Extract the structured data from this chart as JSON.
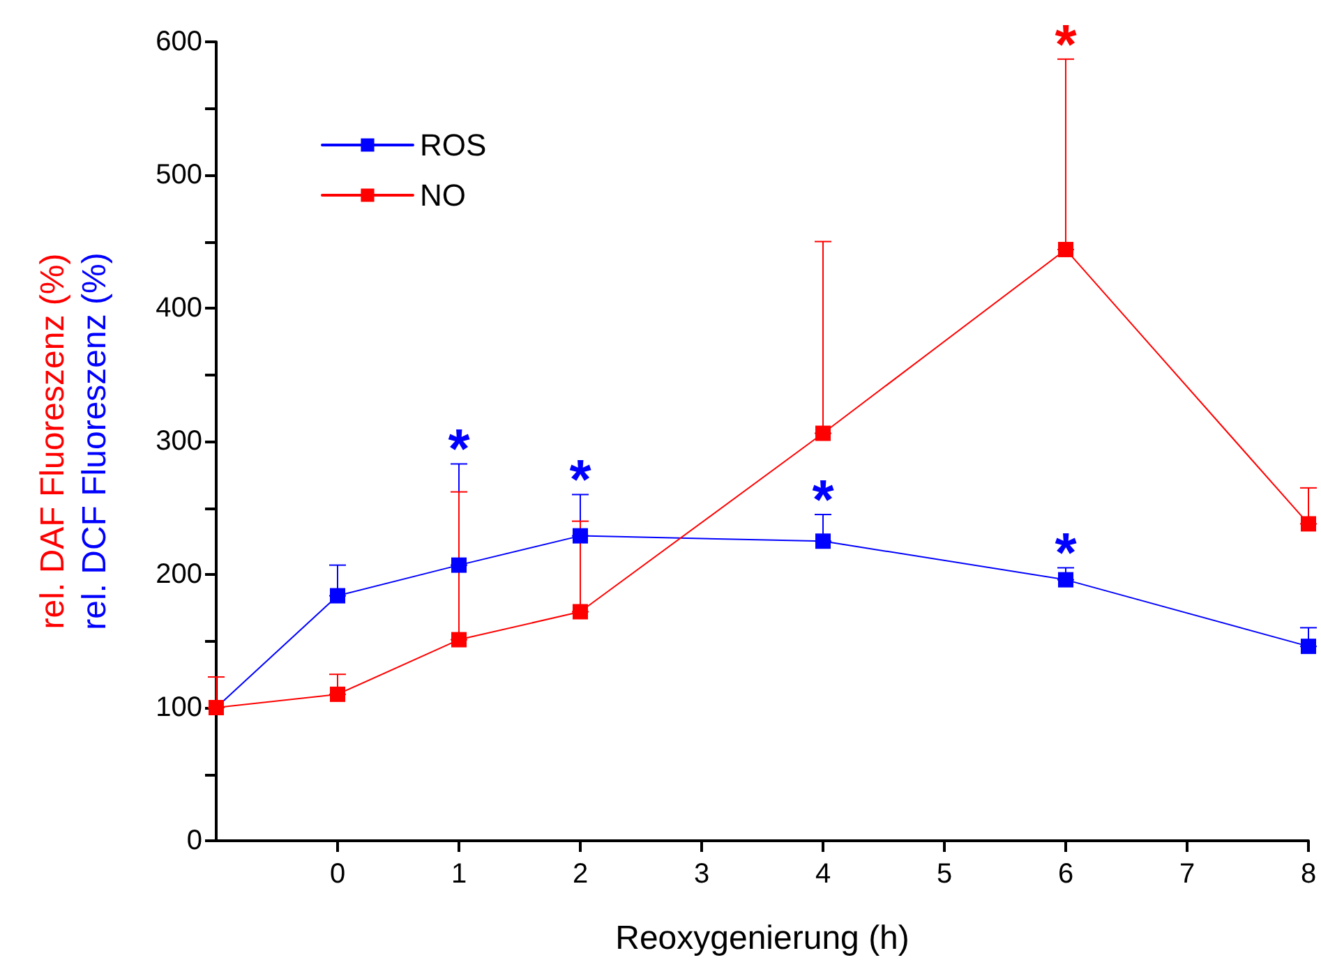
{
  "chart_data": {
    "type": "line",
    "xlabel": "Reoxygenierung (h)",
    "ylabel": "rel. DAF Fluoreszenz (%)\nrel. DCF Fluoreszenz (%)",
    "x": [
      -1,
      0,
      1,
      2,
      4,
      6,
      8
    ],
    "xlim": [
      -1,
      8
    ],
    "xticks": [
      0,
      1,
      2,
      3,
      4,
      5,
      6,
      7,
      8
    ],
    "ylim": [
      0,
      600
    ],
    "yticks": [
      0,
      {
        "value": 50,
        "label": null
      },
      100,
      {
        "value": 150,
        "label": null
      },
      200,
      {
        "value": 250,
        "label": null
      },
      300,
      {
        "value": 350,
        "label": null
      },
      400,
      {
        "value": 450,
        "label": null
      },
      500,
      {
        "value": 550,
        "label": null
      },
      600
    ],
    "series": [
      {
        "name": "ROS",
        "color": "#0000ff",
        "values": [
          100,
          184,
          207,
          229,
          225,
          196,
          146
        ],
        "errors": [
          null,
          [
            184,
            207
          ],
          [
            207,
            283
          ],
          [
            229,
            260
          ],
          [
            225,
            245
          ],
          [
            196,
            205
          ],
          [
            146,
            160
          ]
        ]
      },
      {
        "name": "NO",
        "color": "#ff0000",
        "values": [
          100,
          110,
          151,
          172,
          306,
          444,
          238
        ],
        "errors": [
          [
            100,
            123
          ],
          [
            110,
            125
          ],
          [
            151,
            262
          ],
          [
            172,
            240
          ],
          [
            306,
            450
          ],
          [
            444,
            587
          ],
          [
            238,
            265
          ]
        ]
      }
    ],
    "annotations": [
      {
        "text": "*",
        "x": 1,
        "y": 283
      },
      {
        "text": "*",
        "x": 2,
        "y": 260
      },
      {
        "text": "*",
        "x": 4,
        "y": 245
      },
      {
        "text": "*",
        "x": 6,
        "y": 205
      },
      {
        "text": "*",
        "x": 6,
        "y": 587
      }
    ],
    "marker": "square",
    "line_style": "solid",
    "grid": false,
    "legend": "top left"
  }
}
